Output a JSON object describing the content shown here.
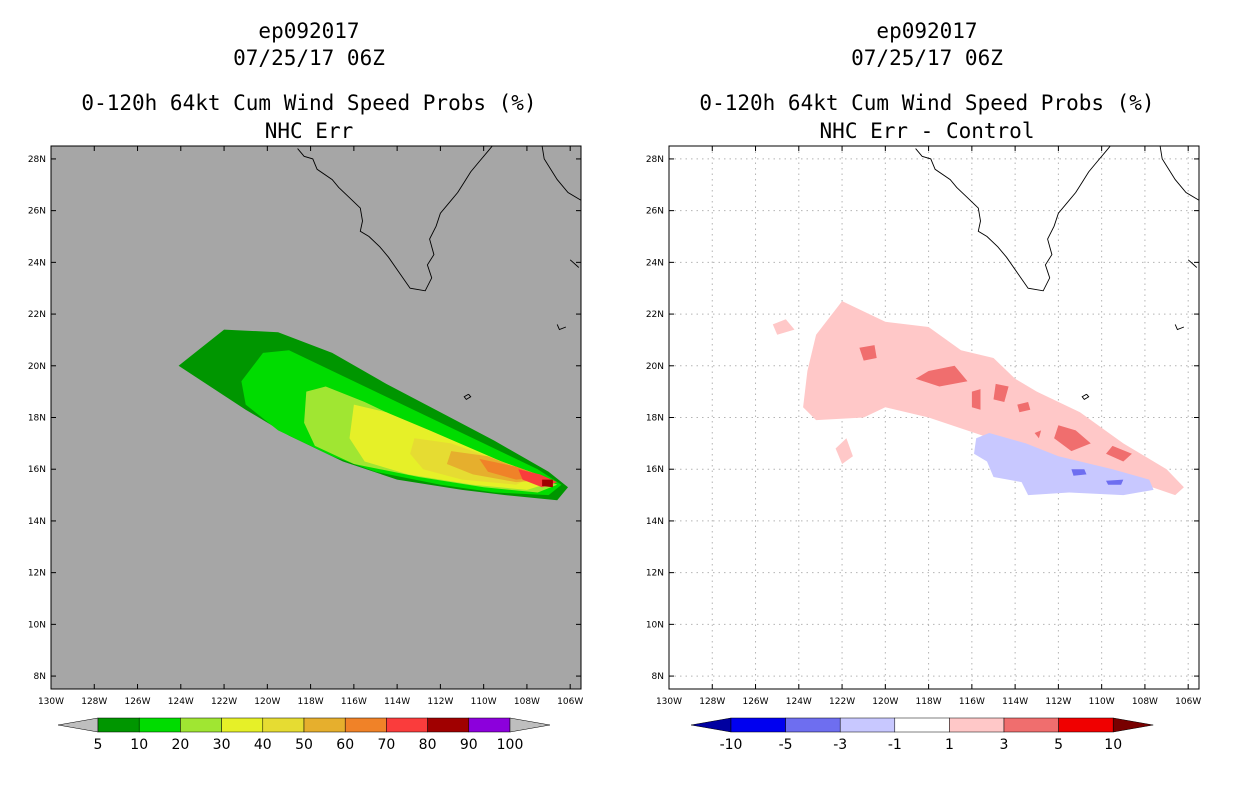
{
  "left": {
    "title_line1": "ep092017",
    "title_line2": "07/25/17 06Z",
    "title_line3": "0-120h 64kt Cum Wind Speed Probs (%)",
    "title_line4": "NHC Err",
    "background_color": "#a6a6a6",
    "colorbar": {
      "labels": [
        "5",
        "10",
        "20",
        "30",
        "40",
        "50",
        "60",
        "70",
        "80",
        "90",
        "100"
      ],
      "colors": [
        "#009600",
        "#00dc00",
        "#a0e632",
        "#e6f028",
        "#e6dc32",
        "#e6af2d",
        "#f08228",
        "#fa3c3c",
        "#a00000",
        "#8c00dc"
      ],
      "end_colors": [
        "#bebebe",
        "#bebebe"
      ]
    }
  },
  "right": {
    "title_line1": "ep092017",
    "title_line2": "07/25/17 06Z",
    "title_line3": "0-120h 64kt Cum Wind Speed Probs (%)",
    "title_line4": "NHC Err - Control",
    "background_color": "#ffffff",
    "colorbar": {
      "labels": [
        "-10",
        "-5",
        "-3",
        "-1",
        "1",
        "3",
        "5",
        "10"
      ],
      "colors": [
        "#0000f0",
        "#6e6ef0",
        "#c8c8ff",
        "#ffffff",
        "#ffc8c8",
        "#f06e6e",
        "#f00000"
      ],
      "end_colors": [
        "#0000a0",
        "#780000"
      ]
    }
  },
  "chart_data": [
    {
      "type": "heatmap",
      "title": "0-120h 64kt Cum Wind Speed Probs (%) NHC Err",
      "lon_ticks": [
        "130W",
        "128W",
        "126W",
        "124W",
        "122W",
        "120W",
        "118W",
        "116W",
        "114W",
        "112W",
        "110W",
        "108W",
        "106W"
      ],
      "lat_ticks": [
        "8N",
        "10N",
        "12N",
        "14N",
        "16N",
        "18N",
        "20N",
        "22N",
        "24N",
        "26N",
        "28N"
      ],
      "lon_range": [
        -130,
        -105.5
      ],
      "lat_range": [
        7.5,
        28.5
      ],
      "grid": false,
      "probability_contours": [
        {
          "level": 5,
          "color": "#009600",
          "points": [
            [
              -124.1,
              20.0
            ],
            [
              -123.2,
              20.6
            ],
            [
              -122.0,
              21.4
            ],
            [
              -119.5,
              21.3
            ],
            [
              -117.0,
              20.5
            ],
            [
              -114.5,
              19.3
            ],
            [
              -112.0,
              18.2
            ],
            [
              -109.5,
              17.1
            ],
            [
              -107.0,
              15.9
            ],
            [
              -106.1,
              15.3
            ],
            [
              -106.6,
              14.8
            ],
            [
              -109.0,
              15.0
            ],
            [
              -111.0,
              15.2
            ],
            [
              -114.0,
              15.6
            ],
            [
              -116.5,
              16.3
            ],
            [
              -119.0,
              17.3
            ],
            [
              -121.0,
              18.3
            ]
          ]
        },
        {
          "level": 10,
          "color": "#00dc00",
          "points": [
            [
              -121.2,
              19.4
            ],
            [
              -120.2,
              20.5
            ],
            [
              -119.0,
              20.6
            ],
            [
              -117.5,
              20.0
            ],
            [
              -115.0,
              19.0
            ],
            [
              -112.5,
              18.0
            ],
            [
              -110.0,
              17.0
            ],
            [
              -107.5,
              16.0
            ],
            [
              -106.4,
              15.4
            ],
            [
              -107.0,
              15.0
            ],
            [
              -109.5,
              15.1
            ],
            [
              -112.0,
              15.4
            ],
            [
              -115.0,
              15.9
            ],
            [
              -117.0,
              16.5
            ],
            [
              -119.5,
              17.5
            ],
            [
              -121.0,
              18.5
            ]
          ]
        },
        {
          "level": 20,
          "color": "#a0e632",
          "points": [
            [
              -118.2,
              19.0
            ],
            [
              -117.3,
              19.2
            ],
            [
              -115.5,
              18.6
            ],
            [
              -113.0,
              17.6
            ],
            [
              -110.5,
              16.7
            ],
            [
              -108.0,
              15.9
            ],
            [
              -106.6,
              15.4
            ],
            [
              -107.5,
              15.1
            ],
            [
              -110.0,
              15.3
            ],
            [
              -113.0,
              15.7
            ],
            [
              -116.0,
              16.2
            ],
            [
              -117.8,
              16.9
            ],
            [
              -118.3,
              17.8
            ]
          ]
        },
        {
          "level": 30,
          "color": "#e6f028",
          "points": [
            [
              -116.0,
              18.5
            ],
            [
              -114.5,
              18.2
            ],
            [
              -112.5,
              17.5
            ],
            [
              -110.0,
              16.6
            ],
            [
              -107.8,
              15.8
            ],
            [
              -106.8,
              15.5
            ],
            [
              -108.0,
              15.2
            ],
            [
              -110.5,
              15.4
            ],
            [
              -113.5,
              15.8
            ],
            [
              -115.5,
              16.3
            ],
            [
              -116.2,
              17.2
            ]
          ]
        },
        {
          "level": 40,
          "color": "#e6dc32",
          "points": [
            [
              -113.2,
              17.2
            ],
            [
              -111.5,
              17.0
            ],
            [
              -109.5,
              16.4
            ],
            [
              -107.5,
              15.8
            ],
            [
              -108.5,
              15.4
            ],
            [
              -111.0,
              15.6
            ],
            [
              -112.8,
              16.0
            ],
            [
              -113.4,
              16.6
            ]
          ]
        },
        {
          "level": 50,
          "color": "#e6af2d",
          "points": [
            [
              -111.5,
              16.7
            ],
            [
              -109.8,
              16.5
            ],
            [
              -108.0,
              15.9
            ],
            [
              -107.0,
              15.6
            ],
            [
              -108.5,
              15.5
            ],
            [
              -110.5,
              15.8
            ],
            [
              -111.7,
              16.2
            ]
          ]
        },
        {
          "level": 60,
          "color": "#f08228",
          "points": [
            [
              -110.2,
              16.4
            ],
            [
              -108.5,
              16.1
            ],
            [
              -107.2,
              15.7
            ],
            [
              -108.5,
              15.6
            ],
            [
              -109.8,
              15.9
            ]
          ]
        },
        {
          "level": 70,
          "color": "#fa3c3c",
          "points": [
            [
              -108.4,
              16.0
            ],
            [
              -107.4,
              15.8
            ],
            [
              -106.6,
              15.5
            ],
            [
              -107.3,
              15.3
            ],
            [
              -108.2,
              15.6
            ]
          ]
        },
        {
          "level": 80,
          "color": "#a00000",
          "points": [
            [
              -107.3,
              15.6
            ],
            [
              -106.8,
              15.6
            ],
            [
              -106.8,
              15.3
            ],
            [
              -107.3,
              15.35
            ]
          ]
        }
      ]
    },
    {
      "type": "heatmap",
      "title": "0-120h 64kt Cum Wind Speed Probs (%) NHC Err - Control",
      "lon_ticks": [
        "130W",
        "128W",
        "126W",
        "124W",
        "122W",
        "120W",
        "118W",
        "116W",
        "114W",
        "112W",
        "110W",
        "108W",
        "106W"
      ],
      "lat_ticks": [
        "8N",
        "10N",
        "12N",
        "14N",
        "16N",
        "18N",
        "20N",
        "22N",
        "24N",
        "26N",
        "28N"
      ],
      "lon_range": [
        -130,
        -105.5
      ],
      "lat_range": [
        7.5,
        28.5
      ],
      "grid": true,
      "difference_contours": [
        {
          "level": 1,
          "color": "#ffc8c8",
          "points": [
            [
              -123.2,
              21.2
            ],
            [
              -122.0,
              22.5
            ],
            [
              -120.0,
              21.7
            ],
            [
              -118.0,
              21.5
            ],
            [
              -116.5,
              20.6
            ],
            [
              -115.0,
              20.3
            ],
            [
              -114.0,
              19.5
            ],
            [
              -113.0,
              19.0
            ],
            [
              -111.0,
              18.2
            ],
            [
              -109.0,
              17.0
            ],
            [
              -107.0,
              16.0
            ],
            [
              -106.2,
              15.3
            ],
            [
              -106.6,
              15.0
            ],
            [
              -108.0,
              15.4
            ],
            [
              -111.0,
              16.2
            ],
            [
              -113.0,
              16.6
            ],
            [
              -115.5,
              17.3
            ],
            [
              -118.0,
              18.0
            ],
            [
              -120.0,
              18.4
            ],
            [
              -121.0,
              18.0
            ],
            [
              -123.2,
              17.9
            ],
            [
              -123.8,
              18.4
            ],
            [
              -123.6,
              19.8
            ]
          ]
        },
        {
          "level": 1,
          "color": "#ffc8c8",
          "points": [
            [
              -125.2,
              21.6
            ],
            [
              -124.6,
              21.8
            ],
            [
              -124.2,
              21.4
            ],
            [
              -125.0,
              21.2
            ]
          ]
        },
        {
          "level": 1,
          "color": "#ffc8c8",
          "points": [
            [
              -122.3,
              16.8
            ],
            [
              -121.8,
              17.2
            ],
            [
              -121.5,
              16.5
            ],
            [
              -122.0,
              16.2
            ]
          ]
        },
        {
          "level": 3,
          "color": "#f06e6e",
          "points": [
            [
              -118.0,
              19.8
            ],
            [
              -116.8,
              20.0
            ],
            [
              -116.2,
              19.4
            ],
            [
              -117.5,
              19.2
            ],
            [
              -118.6,
              19.5
            ]
          ]
        },
        {
          "level": 3,
          "color": "#f06e6e",
          "points": [
            [
              -121.2,
              20.7
            ],
            [
              -120.5,
              20.8
            ],
            [
              -120.4,
              20.3
            ],
            [
              -121.0,
              20.2
            ]
          ]
        },
        {
          "level": 3,
          "color": "#f06e6e",
          "points": [
            [
              -116.0,
              19.0
            ],
            [
              -115.6,
              19.1
            ],
            [
              -115.6,
              18.3
            ],
            [
              -116.0,
              18.4
            ]
          ]
        },
        {
          "level": 3,
          "color": "#f06e6e",
          "points": [
            [
              -114.9,
              19.3
            ],
            [
              -114.3,
              19.2
            ],
            [
              -114.5,
              18.6
            ],
            [
              -115.0,
              18.7
            ]
          ]
        },
        {
          "level": 3,
          "color": "#f06e6e",
          "points": [
            [
              -112.0,
              17.7
            ],
            [
              -111.2,
              17.5
            ],
            [
              -110.5,
              17.0
            ],
            [
              -111.4,
              16.7
            ],
            [
              -112.2,
              17.2
            ]
          ]
        },
        {
          "level": 3,
          "color": "#f06e6e",
          "points": [
            [
              -109.5,
              16.9
            ],
            [
              -108.6,
              16.6
            ],
            [
              -109.0,
              16.3
            ],
            [
              -109.8,
              16.6
            ]
          ]
        },
        {
          "level": 3,
          "color": "#f06e6e",
          "points": [
            [
              -113.9,
              18.5
            ],
            [
              -113.4,
              18.6
            ],
            [
              -113.3,
              18.3
            ],
            [
              -113.8,
              18.2
            ]
          ]
        },
        {
          "level": 3,
          "color": "#f06e6e",
          "points": [
            [
              -113.1,
              17.4
            ],
            [
              -112.8,
              17.5
            ],
            [
              -112.9,
              17.2
            ]
          ]
        },
        {
          "level": -1,
          "color": "#c8c8ff",
          "points": [
            [
              -115.8,
              17.2
            ],
            [
              -115.2,
              17.4
            ],
            [
              -113.5,
              17.0
            ],
            [
              -112.0,
              16.5
            ],
            [
              -109.5,
              16.0
            ],
            [
              -107.8,
              15.6
            ],
            [
              -107.6,
              15.2
            ],
            [
              -109.0,
              15.0
            ],
            [
              -111.5,
              15.1
            ],
            [
              -113.4,
              15.0
            ],
            [
              -113.7,
              15.5
            ],
            [
              -115.0,
              15.7
            ],
            [
              -115.3,
              16.3
            ],
            [
              -115.9,
              16.6
            ]
          ]
        },
        {
          "level": -3,
          "color": "#6e6ef0",
          "points": [
            [
              -111.4,
              16.0
            ],
            [
              -110.8,
              16.0
            ],
            [
              -110.7,
              15.8
            ],
            [
              -111.3,
              15.75
            ]
          ]
        },
        {
          "level": -3,
          "color": "#6e6ef0",
          "points": [
            [
              -109.8,
              15.55
            ],
            [
              -109.0,
              15.6
            ],
            [
              -109.1,
              15.4
            ],
            [
              -109.7,
              15.4
            ]
          ]
        }
      ]
    }
  ],
  "coastlines": [
    [
      [
        -118.6,
        28.4
      ],
      [
        -118.3,
        28.1
      ],
      [
        -117.9,
        28.0
      ],
      [
        -117.7,
        27.6
      ],
      [
        -117.0,
        27.2
      ],
      [
        -116.7,
        26.9
      ],
      [
        -116.2,
        26.5
      ],
      [
        -115.7,
        26.1
      ],
      [
        -115.6,
        25.6
      ],
      [
        -115.7,
        25.2
      ],
      [
        -115.3,
        25.0
      ],
      [
        -114.8,
        24.6
      ],
      [
        -114.4,
        24.2
      ],
      [
        -113.9,
        23.6
      ],
      [
        -113.4,
        23.0
      ],
      [
        -112.7,
        22.9
      ],
      [
        -112.4,
        23.4
      ],
      [
        -112.6,
        23.9
      ],
      [
        -112.3,
        24.3
      ],
      [
        -112.5,
        24.9
      ],
      [
        -112.2,
        25.4
      ],
      [
        -112.0,
        25.9
      ],
      [
        -111.6,
        26.3
      ],
      [
        -111.2,
        26.7
      ],
      [
        -110.9,
        27.1
      ],
      [
        -110.6,
        27.5
      ],
      [
        -110.2,
        27.9
      ],
      [
        -109.8,
        28.3
      ],
      [
        -109.6,
        28.5
      ]
    ],
    [
      [
        -107.3,
        28.5
      ],
      [
        -107.2,
        28.0
      ],
      [
        -106.9,
        27.6
      ],
      [
        -106.6,
        27.2
      ],
      [
        -106.1,
        26.7
      ],
      [
        -105.5,
        26.4
      ]
    ],
    [
      [
        -105.6,
        23.8
      ],
      [
        -106.0,
        24.1
      ]
    ],
    [
      [
        -106.6,
        21.6
      ],
      [
        -106.5,
        21.4
      ],
      [
        -106.2,
        21.5
      ]
    ],
    [
      [
        -110.7,
        18.9
      ],
      [
        -110.9,
        18.8
      ],
      [
        -110.8,
        18.7
      ],
      [
        -110.6,
        18.8
      ],
      [
        -110.7,
        18.9
      ]
    ]
  ]
}
